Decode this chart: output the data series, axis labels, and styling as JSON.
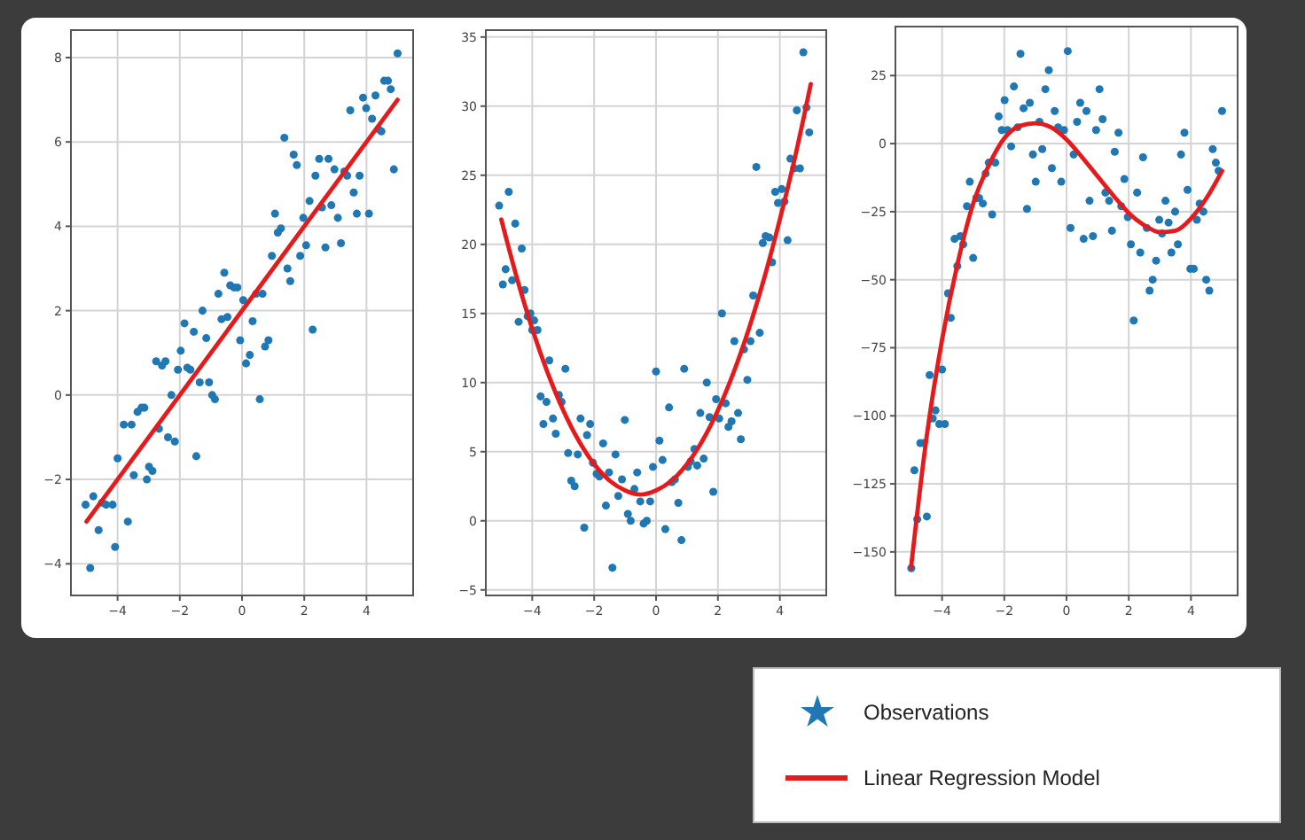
{
  "chart_data": [
    {
      "type": "scatter",
      "xlim": [
        -5.5,
        5.5
      ],
      "ylim": [
        -4.75,
        8.65
      ],
      "xticks": [
        -4,
        -2,
        0,
        2,
        4
      ],
      "yticks": [
        -4,
        -2,
        0,
        2,
        4,
        6,
        8
      ],
      "grid": true,
      "series": [
        {
          "marker": "circle",
          "color": "#1f77b4",
          "x": [
            -5.03,
            -4.88,
            -4.78,
            -4.61,
            -4.5,
            -4.37,
            -4.16,
            -4.08,
            -4.0,
            -3.8,
            -3.67,
            -3.55,
            -3.48,
            -3.36,
            -3.23,
            -3.14,
            -3.06,
            -2.99,
            -2.88,
            -2.76,
            -2.67,
            -2.57,
            -2.46,
            -2.38,
            -2.27,
            -2.16,
            -2.06,
            -1.97,
            -1.85,
            -1.76,
            -1.66,
            -1.55,
            -1.47,
            -1.36,
            -1.27,
            -1.15,
            -1.06,
            -0.96,
            -0.87,
            -0.76,
            -0.66,
            -0.57,
            -0.47,
            -0.38,
            -0.26,
            -0.15,
            -0.06,
            0.04,
            0.13,
            0.25,
            0.34,
            0.45,
            0.57,
            0.66,
            0.74,
            0.85,
            0.96,
            1.06,
            1.15,
            1.25,
            1.36,
            1.46,
            1.55,
            1.66,
            1.76,
            1.87,
            1.97,
            2.06,
            2.17,
            2.27,
            2.36,
            2.48,
            2.57,
            2.68,
            2.78,
            2.87,
            2.97,
            3.08,
            3.18,
            3.29,
            3.38,
            3.48,
            3.59,
            3.69,
            3.78,
            3.89,
            3.99,
            4.08,
            4.18,
            4.29,
            4.39,
            4.48,
            4.57,
            4.69,
            4.78,
            4.88,
            5.0
          ],
          "values": [
            -2.6,
            -4.1,
            -2.4,
            -3.2,
            -2.55,
            -2.6,
            -2.6,
            -3.6,
            -1.5,
            -0.7,
            -3.0,
            -0.7,
            -1.9,
            -0.4,
            -0.3,
            -0.3,
            -2.0,
            -1.7,
            -1.8,
            0.8,
            -0.8,
            0.7,
            0.8,
            -1.0,
            0.0,
            -1.1,
            0.6,
            1.05,
            1.7,
            0.65,
            0.6,
            1.5,
            -1.45,
            0.3,
            2.0,
            1.35,
            0.3,
            0.0,
            -0.1,
            2.4,
            1.8,
            2.9,
            1.85,
            2.6,
            2.55,
            2.55,
            1.3,
            2.25,
            0.75,
            0.95,
            1.75,
            2.4,
            -0.1,
            2.4,
            1.15,
            1.3,
            3.3,
            4.3,
            3.85,
            3.95,
            6.1,
            3.0,
            2.7,
            5.7,
            5.45,
            3.3,
            4.2,
            3.55,
            4.6,
            1.55,
            5.2,
            5.6,
            4.45,
            3.5,
            5.6,
            4.5,
            5.35,
            4.2,
            3.6,
            5.3,
            5.2,
            6.75,
            4.8,
            4.3,
            5.2,
            7.05,
            6.8,
            4.3,
            6.55,
            7.1,
            6.3,
            6.25,
            7.45,
            7.45,
            7.25,
            5.35,
            8.1
          ]
        },
        {
          "type": "line",
          "color": "#e41a1c",
          "line_style": "solid",
          "x": [
            -5,
            5
          ],
          "values": [
            -3,
            7
          ]
        }
      ]
    },
    {
      "type": "scatter",
      "xlim": [
        -5.5,
        5.5
      ],
      "ylim": [
        -5.4,
        35.5
      ],
      "xticks": [
        -4,
        -2,
        0,
        2,
        4
      ],
      "yticks": [
        -5,
        0,
        5,
        10,
        15,
        20,
        25,
        30,
        35
      ],
      "grid": true,
      "series": [
        {
          "marker": "circle",
          "color": "#1f77b4",
          "x": [
            -5.07,
            -4.95,
            -4.86,
            -4.76,
            -4.65,
            -4.55,
            -4.44,
            -4.34,
            -4.25,
            -4.15,
            -4.06,
            -4.0,
            -3.94,
            -3.83,
            -3.73,
            -3.64,
            -3.54,
            -3.45,
            -3.33,
            -3.24,
            -3.14,
            -3.05,
            -2.93,
            -2.84,
            -2.74,
            -2.63,
            -2.53,
            -2.44,
            -2.32,
            -2.23,
            -2.13,
            -2.04,
            -1.92,
            -1.83,
            -1.71,
            -1.62,
            -1.52,
            -1.41,
            -1.31,
            -1.22,
            -1.1,
            -1.01,
            -0.91,
            -0.82,
            -0.7,
            -0.61,
            -0.51,
            -0.4,
            -0.3,
            -0.19,
            -0.1,
            0.0,
            0.11,
            0.21,
            0.3,
            0.42,
            0.51,
            0.61,
            0.72,
            0.82,
            0.91,
            1.03,
            1.12,
            1.24,
            1.33,
            1.43,
            1.54,
            1.64,
            1.73,
            1.85,
            1.94,
            2.04,
            2.13,
            2.25,
            2.34,
            2.44,
            2.53,
            2.65,
            2.74,
            2.84,
            2.95,
            3.05,
            3.14,
            3.24,
            3.35,
            3.45,
            3.54,
            3.66,
            3.75,
            3.85,
            3.94,
            4.06,
            4.15,
            4.25,
            4.34,
            4.46,
            4.55,
            4.65,
            4.76,
            4.86,
            4.95
          ],
          "values": [
            22.8,
            17.1,
            18.2,
            23.8,
            17.4,
            21.5,
            14.4,
            19.7,
            16.7,
            14.8,
            15.0,
            13.8,
            14.5,
            13.8,
            9.0,
            7.0,
            8.6,
            11.6,
            7.4,
            6.3,
            9.1,
            8.6,
            11.0,
            4.9,
            2.9,
            2.5,
            4.8,
            7.4,
            -0.5,
            6.2,
            7.0,
            4.2,
            3.4,
            3.2,
            5.6,
            1.1,
            3.5,
            -3.4,
            4.8,
            1.8,
            3.0,
            7.3,
            0.5,
            0.0,
            2.3,
            3.5,
            1.4,
            -0.2,
            0.0,
            1.4,
            3.9,
            10.8,
            5.8,
            4.4,
            -0.6,
            8.2,
            2.8,
            3.0,
            1.3,
            -1.4,
            11.0,
            3.9,
            4.3,
            5.2,
            4.0,
            7.8,
            4.5,
            10.0,
            7.5,
            2.1,
            8.8,
            7.4,
            15.0,
            8.5,
            6.8,
            7.2,
            13.0,
            7.8,
            5.9,
            12.4,
            10.2,
            13.0,
            16.3,
            25.6,
            13.6,
            20.1,
            20.6,
            20.5,
            18.7,
            23.8,
            23.0,
            24.0,
            23.1,
            20.3,
            26.2,
            25.5,
            29.7,
            25.5,
            33.9,
            29.9,
            28.1
          ]
        },
        {
          "type": "line",
          "color": "#e41a1c",
          "line_style": "solid",
          "x": [
            -5,
            -4.5,
            -4,
            -3.5,
            -3,
            -2.5,
            -2,
            -1.5,
            -1,
            -0.5,
            0,
            0.5,
            1,
            1.5,
            2,
            2.5,
            3,
            3.5,
            4,
            4.5,
            5
          ],
          "values": [
            21.8,
            17.6,
            13.9,
            10.7,
            8.0,
            5.8,
            4.1,
            2.9,
            2.2,
            1.9,
            2.2,
            2.9,
            4.1,
            5.8,
            8.0,
            10.7,
            13.9,
            17.6,
            21.8,
            26.4,
            31.6
          ]
        }
      ]
    },
    {
      "type": "scatter",
      "xlim": [
        -5.5,
        5.5
      ],
      "ylim": [
        -166,
        43
      ],
      "xticks": [
        -4,
        -2,
        0,
        2,
        4
      ],
      "yticks": [
        -150,
        -125,
        -100,
        -75,
        -50,
        -25,
        0,
        25
      ],
      "grid": true,
      "legend": "bottom",
      "series": [
        {
          "marker": "circle",
          "name": "Observations",
          "color": "#1f77b4",
          "x": [
            -4.99,
            -4.89,
            -4.8,
            -4.7,
            -4.59,
            -4.49,
            -4.4,
            -4.3,
            -4.21,
            -4.09,
            -4.0,
            -3.91,
            -3.81,
            -3.72,
            -3.6,
            -3.51,
            -3.41,
            -3.32,
            -3.2,
            -3.11,
            -3.0,
            -2.9,
            -2.81,
            -2.69,
            -2.6,
            -2.5,
            -2.39,
            -2.29,
            -2.18,
            -2.08,
            -1.99,
            -1.9,
            -1.78,
            -1.69,
            -1.57,
            -1.48,
            -1.38,
            -1.27,
            -1.18,
            -1.08,
            -0.99,
            -0.87,
            -0.78,
            -0.68,
            -0.57,
            -0.47,
            -0.38,
            -0.27,
            -0.17,
            -0.08,
            0.04,
            0.13,
            0.23,
            0.34,
            0.44,
            0.55,
            0.64,
            0.74,
            0.85,
            0.95,
            1.06,
            1.16,
            1.25,
            1.37,
            1.46,
            1.55,
            1.67,
            1.76,
            1.86,
            1.97,
            2.07,
            2.16,
            2.27,
            2.37,
            2.46,
            2.58,
            2.67,
            2.77,
            2.88,
            2.98,
            3.07,
            3.18,
            3.28,
            3.37,
            3.49,
            3.58,
            3.68,
            3.79,
            3.89,
            3.98,
            4.09,
            4.19,
            4.28,
            4.4,
            4.49,
            4.59,
            4.7,
            4.8,
            4.89,
            5.0
          ],
          "values": [
            -156,
            -120,
            -138,
            -110,
            -110,
            -137,
            -85,
            -101,
            -98,
            -103,
            -83,
            -103,
            -55,
            -64,
            -35,
            -45,
            -34,
            -37,
            -23,
            -14,
            -42,
            -20,
            -20,
            -22,
            -11,
            -7,
            -26,
            -7,
            10,
            5,
            16,
            5,
            -1,
            21,
            6,
            33,
            13,
            -24,
            15,
            -4,
            -14,
            8,
            -2,
            20,
            27,
            -9,
            12,
            6,
            -14,
            5,
            34,
            -31,
            -4,
            8,
            15,
            -35,
            12,
            -21,
            -34,
            5,
            20,
            9,
            -18,
            -21,
            -32,
            -3,
            4,
            -23,
            -13,
            -27,
            -37,
            -65,
            -18,
            -40,
            -5,
            -31,
            -54,
            -50,
            -43,
            -28,
            -33,
            -21,
            -29,
            -40,
            -25,
            -37,
            -4,
            4,
            -17,
            -46,
            -46,
            -28,
            -22,
            -25,
            -50,
            -54,
            -2,
            -7,
            -10,
            12
          ]
        },
        {
          "type": "line",
          "name": "Linear Regression Model",
          "color": "#e41a1c",
          "line_style": "solid",
          "x": [
            -5,
            -4.5,
            -4,
            -3.5,
            -3,
            -2.5,
            -2,
            -1.5,
            -1,
            -0.5,
            0,
            0.5,
            1,
            1.5,
            2,
            2.5,
            3,
            3.5,
            4,
            4.5,
            5
          ],
          "values": [
            -156,
            -108,
            -72,
            -44,
            -22,
            -8,
            2,
            6.5,
            7.5,
            6,
            1.5,
            -5,
            -12,
            -19,
            -25.5,
            -30,
            -32.5,
            -32,
            -27.5,
            -20,
            -10
          ]
        }
      ]
    }
  ]
}
